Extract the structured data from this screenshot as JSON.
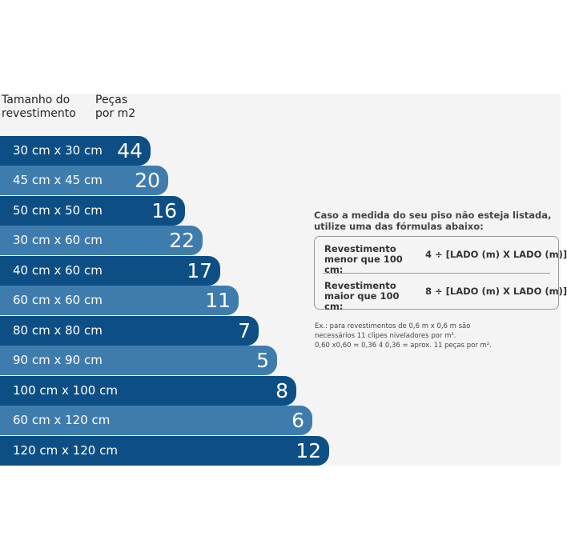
{
  "headers": {
    "size": "Tamanho do\nrevestimento",
    "pieces": "Peças\npor m2"
  },
  "rows": [
    {
      "size": "30 cm x 30 cm",
      "pieces": "44"
    },
    {
      "size": "45 cm x 45 cm",
      "pieces": "20"
    },
    {
      "size": "50 cm x 50 cm",
      "pieces": "16"
    },
    {
      "size": "30 cm x 60 cm",
      "pieces": "22"
    },
    {
      "size": "40 cm x 60 cm",
      "pieces": "17"
    },
    {
      "size": "60 cm x 60 cm",
      "pieces": "11"
    },
    {
      "size": "80 cm x 80 cm",
      "pieces": "7"
    },
    {
      "size": "90 cm x 90 cm",
      "pieces": "5"
    },
    {
      "size": "100 cm x 100 cm",
      "pieces": "8"
    },
    {
      "size": "60 cm x 120 cm",
      "pieces": "6"
    },
    {
      "size": "120 cm x 120 cm",
      "pieces": "12"
    }
  ],
  "formulas": {
    "intro": "Caso a medida do seu piso não esteja listada,\nutilize uma das fórmulas abaixo:",
    "small_label": "Revestimento\nmenor que 100 cm:",
    "small_formula": "4 ÷ [LADO (m) X LADO (m)]",
    "large_label": "Revestimento\nmaior que 100 cm:",
    "large_formula": "8 ÷ [LADO (m) X LADO (m)]"
  },
  "example": "Ex.: para revestimentos de 0,6 m x 0,6 m são\nnecessários 11 clipes niveladores por m².\n0,60 x0,60 = 0,36  4   0,36 = aprox. 11 peças por m².",
  "colors": {
    "bar_dark": "#0d4f84",
    "bar_light": "#3f7cae",
    "panel_bg": "#f4f4f4"
  }
}
